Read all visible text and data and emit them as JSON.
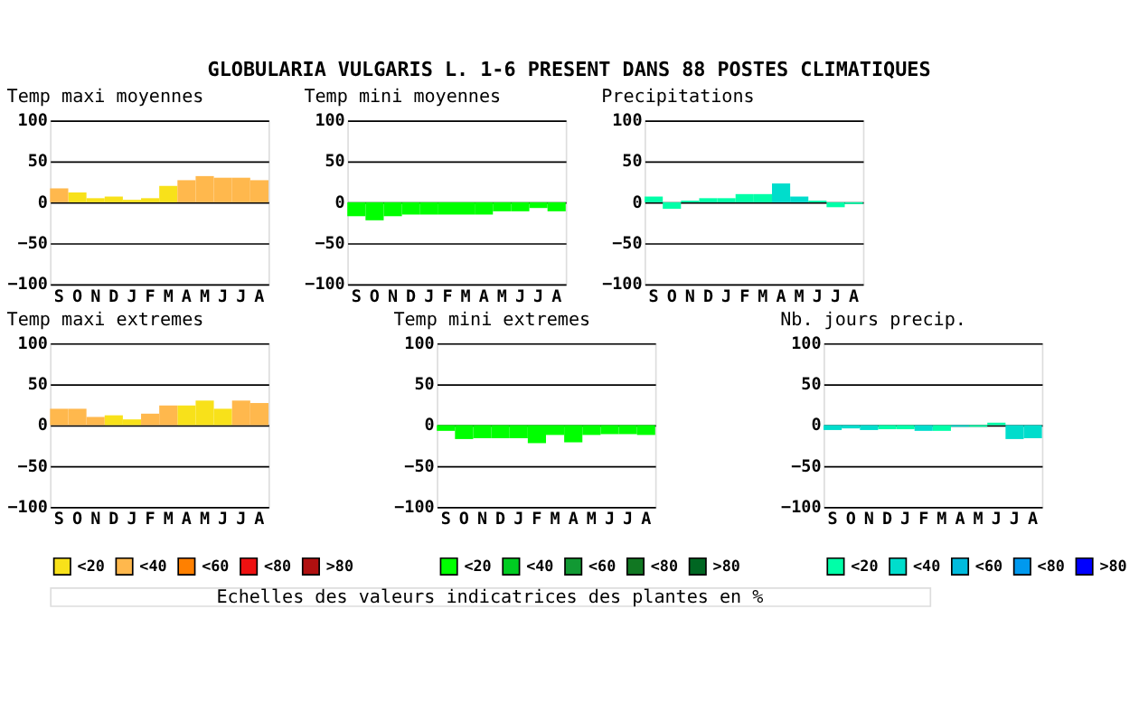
{
  "chart_data": [
    {
      "type": "bar",
      "title": "Temp maxi moyennes",
      "annotations": [
        "GLOBULARIA VULGARIS L.  1-6 PRESENT DANS  88 POSTES CLIMATIQUES"
      ],
      "categories": [
        "S",
        "O",
        "N",
        "D",
        "J",
        "F",
        "M",
        "A",
        "M",
        "J",
        "J",
        "A"
      ],
      "ylim": [
        -100,
        100
      ],
      "yticks": [
        -100,
        -50,
        0,
        50,
        100
      ],
      "grid": "y",
      "series": [
        {
          "color": "#f8e11a",
          "values": [
            null,
            12,
            5,
            7,
            3,
            5,
            20,
            null,
            null,
            null,
            null,
            null
          ]
        },
        {
          "color": "#ffb84d",
          "values": [
            17,
            null,
            null,
            null,
            null,
            null,
            null,
            27,
            32,
            30,
            30,
            27
          ]
        }
      ]
    },
    {
      "type": "bar",
      "title": "Temp mini moyennes",
      "categories": [
        "S",
        "O",
        "N",
        "D",
        "J",
        "F",
        "M",
        "A",
        "M",
        "J",
        "J",
        "A"
      ],
      "ylim": [
        -100,
        100
      ],
      "yticks": [
        -100,
        -50,
        0,
        50,
        100
      ],
      "grid": "y",
      "series": [
        {
          "color": "#00ff00",
          "values": [
            -17,
            -22,
            -17,
            -15,
            -15,
            -15,
            -15,
            -15,
            -11,
            -11,
            -7,
            -11
          ]
        }
      ]
    },
    {
      "type": "bar",
      "title": "Precipitations",
      "categories": [
        "S",
        "O",
        "N",
        "D",
        "J",
        "F",
        "M",
        "A",
        "M",
        "J",
        "J",
        "A"
      ],
      "ylim": [
        -100,
        100
      ],
      "yticks": [
        -100,
        -50,
        0,
        50,
        100
      ],
      "grid": "y",
      "series": [
        {
          "color": "#00ffa8",
          "values": [
            7,
            -8,
            2,
            5,
            5,
            10,
            10,
            null,
            null,
            2,
            -6,
            -2
          ]
        },
        {
          "color": "#00ddcc",
          "values": [
            null,
            null,
            null,
            null,
            null,
            null,
            null,
            23,
            7,
            null,
            null,
            null
          ]
        }
      ]
    },
    {
      "type": "bar",
      "title": "Temp maxi extremes",
      "categories": [
        "S",
        "O",
        "N",
        "D",
        "J",
        "F",
        "M",
        "A",
        "M",
        "J",
        "J",
        "A"
      ],
      "ylim": [
        -100,
        100
      ],
      "yticks": [
        -100,
        -50,
        0,
        50,
        100
      ],
      "grid": "y",
      "legend": "bottom",
      "series": [
        {
          "name": "<20",
          "color": "#f8e11a",
          "values": [
            null,
            null,
            null,
            12,
            7,
            null,
            null,
            24,
            30,
            20,
            null,
            null
          ]
        },
        {
          "name": "<40",
          "color": "#ffb84d",
          "values": [
            20,
            20,
            10,
            null,
            null,
            14,
            24,
            null,
            null,
            null,
            30,
            27
          ]
        },
        {
          "name": "<60",
          "color": "#ff8000",
          "values": [
            null,
            null,
            null,
            null,
            null,
            null,
            null,
            null,
            null,
            null,
            null,
            null
          ]
        },
        {
          "name": "<80",
          "color": "#ee1111",
          "values": [
            null,
            null,
            null,
            null,
            null,
            null,
            null,
            null,
            null,
            null,
            null,
            null
          ]
        },
        {
          "name": ">80",
          "color": "#b01010",
          "values": [
            null,
            null,
            null,
            null,
            null,
            null,
            null,
            null,
            null,
            null,
            null,
            null
          ]
        }
      ]
    },
    {
      "type": "bar",
      "title": "Temp mini extremes",
      "annotations": [
        "Echelles des valeurs indicatrices des plantes en %"
      ],
      "categories": [
        "S",
        "O",
        "N",
        "D",
        "J",
        "F",
        "M",
        "A",
        "M",
        "J",
        "J",
        "A"
      ],
      "ylim": [
        -100,
        100
      ],
      "yticks": [
        -100,
        -50,
        0,
        50,
        100
      ],
      "grid": "y",
      "legend": "bottom",
      "series": [
        {
          "name": "<20",
          "color": "#00ff00",
          "values": [
            -7,
            -17,
            -16,
            -16,
            -16,
            -22,
            -12,
            -21,
            -12,
            -11,
            -11,
            -12
          ]
        },
        {
          "name": "<40",
          "color": "#00cc22",
          "values": [
            null,
            null,
            null,
            null,
            null,
            null,
            null,
            null,
            null,
            null,
            null,
            null
          ]
        },
        {
          "name": "<60",
          "color": "#119933",
          "values": [
            null,
            null,
            null,
            null,
            null,
            null,
            null,
            null,
            null,
            null,
            null,
            null
          ]
        },
        {
          "name": "<80",
          "color": "#117722",
          "values": [
            null,
            null,
            null,
            null,
            null,
            null,
            null,
            null,
            null,
            null,
            null,
            null
          ]
        },
        {
          "name": ">80",
          "color": "#006622",
          "values": [
            null,
            null,
            null,
            null,
            null,
            null,
            null,
            null,
            null,
            null,
            null,
            null
          ]
        }
      ]
    },
    {
      "type": "bar",
      "title": "Nb. jours precip.",
      "categories": [
        "S",
        "O",
        "N",
        "D",
        "J",
        "F",
        "M",
        "A",
        "M",
        "J",
        "J",
        "A"
      ],
      "ylim": [
        -100,
        100
      ],
      "yticks": [
        -100,
        -50,
        0,
        50,
        100
      ],
      "grid": "y",
      "legend": "bottom",
      "series": [
        {
          "name": "<20",
          "color": "#00ffa8",
          "values": [
            null,
            null,
            null,
            -5,
            -5,
            null,
            -7,
            null,
            -2,
            3,
            null,
            null
          ]
        },
        {
          "name": "<40",
          "color": "#00ddcc",
          "values": [
            -6,
            -4,
            -6,
            null,
            null,
            -7,
            null,
            -2,
            null,
            null,
            -17,
            -16
          ]
        },
        {
          "name": "<60",
          "color": "#00bbdd",
          "values": [
            null,
            null,
            null,
            null,
            null,
            null,
            null,
            null,
            null,
            null,
            null,
            null
          ]
        },
        {
          "name": "<80",
          "color": "#0099ee",
          "values": [
            null,
            null,
            null,
            null,
            null,
            null,
            null,
            null,
            null,
            null,
            null,
            null
          ]
        },
        {
          "name": ">80",
          "color": "#0000ff",
          "values": [
            null,
            null,
            null,
            null,
            null,
            null,
            null,
            null,
            null,
            null,
            null,
            null
          ]
        }
      ]
    }
  ]
}
